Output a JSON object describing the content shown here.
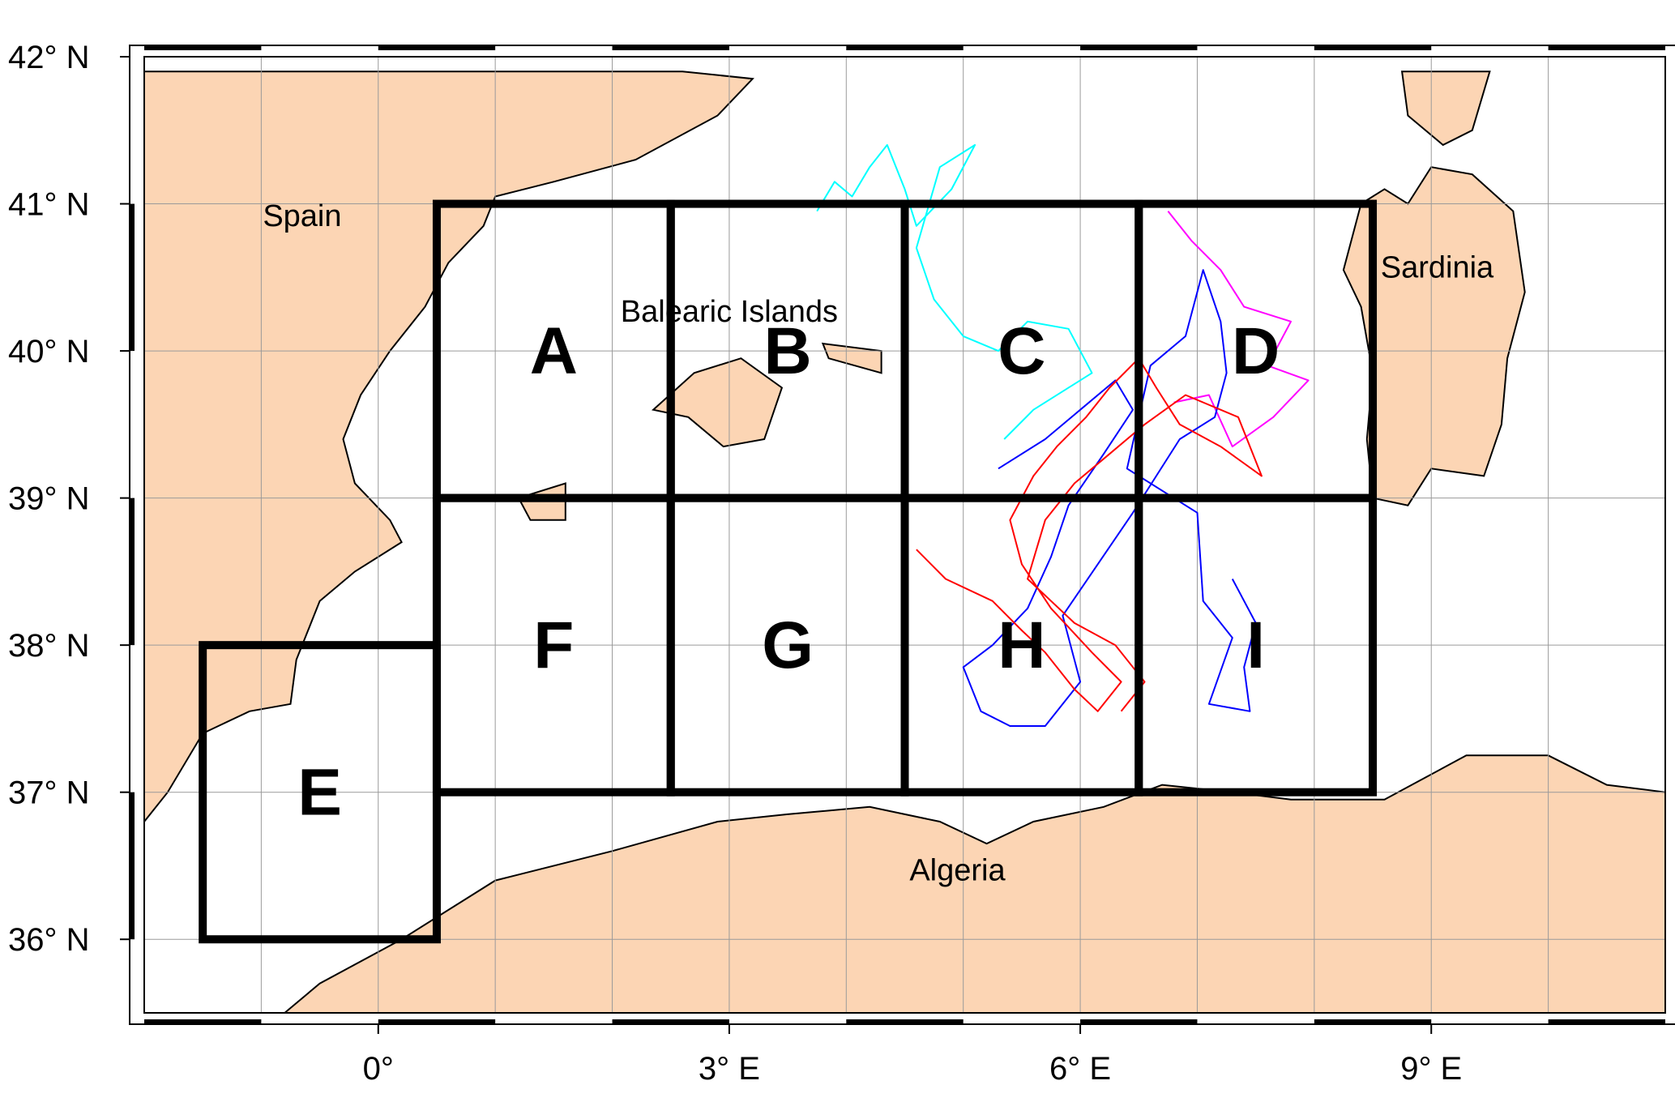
{
  "map": {
    "lat_ticks": [
      {
        "lat": 36,
        "label": "36°  N"
      },
      {
        "lat": 37,
        "label": "37°  N"
      },
      {
        "lat": 38,
        "label": "38°  N"
      },
      {
        "lat": 39,
        "label": "39°  N"
      },
      {
        "lat": 40,
        "label": "40°  N"
      },
      {
        "lat": 41,
        "label": "41°  N"
      },
      {
        "lat": 42,
        "label": "42°  N"
      }
    ],
    "lon_ticks": [
      {
        "lon": 0,
        "label": "0°"
      },
      {
        "lon": 3,
        "label": "3°  E"
      },
      {
        "lon": 6,
        "label": "6°  E"
      },
      {
        "lon": 9,
        "label": "9°  E"
      }
    ],
    "extent": {
      "lon_min": -2.0,
      "lon_max": 11.0,
      "lat_min": 35.5,
      "lat_max": 42.0
    },
    "colors": {
      "land": "#fcd5b4",
      "frame": "#000000",
      "grid": "#9a9a9a"
    },
    "places": [
      {
        "name": "Spain",
        "lon": -0.65,
        "lat": 40.85
      },
      {
        "name": "Balearic Islands",
        "lon": 3.0,
        "lat": 40.2
      },
      {
        "name": "Sardinia",
        "lon": 9.05,
        "lat": 40.5
      },
      {
        "name": "Algeria",
        "lon": 4.95,
        "lat": 36.4
      }
    ],
    "boxes": [
      {
        "label": "A",
        "lon_min": 0.5,
        "lon_max": 2.5,
        "lat_min": 39.0,
        "lat_max": 41.0
      },
      {
        "label": "B",
        "lon_min": 2.5,
        "lon_max": 4.5,
        "lat_min": 39.0,
        "lat_max": 41.0
      },
      {
        "label": "C",
        "lon_min": 4.5,
        "lon_max": 6.5,
        "lat_min": 39.0,
        "lat_max": 41.0
      },
      {
        "label": "D",
        "lon_min": 6.5,
        "lon_max": 8.5,
        "lat_min": 39.0,
        "lat_max": 41.0
      },
      {
        "label": "E",
        "lon_min": -1.5,
        "lon_max": 0.5,
        "lat_min": 36.0,
        "lat_max": 38.0
      },
      {
        "label": "F",
        "lon_min": 0.5,
        "lon_max": 2.5,
        "lat_min": 37.0,
        "lat_max": 39.0
      },
      {
        "label": "G",
        "lon_min": 2.5,
        "lon_max": 4.5,
        "lat_min": 37.0,
        "lat_max": 39.0
      },
      {
        "label": "H",
        "lon_min": 4.5,
        "lon_max": 6.5,
        "lat_min": 37.0,
        "lat_max": 39.0
      },
      {
        "label": "I",
        "lon_min": 6.5,
        "lon_max": 8.5,
        "lat_min": 37.0,
        "lat_max": 39.0
      }
    ],
    "land_polygons": [
      {
        "name": "spain-coast",
        "coords": [
          [
            -2.0,
            41.9
          ],
          [
            0.5,
            41.9
          ],
          [
            2.6,
            41.9
          ],
          [
            3.2,
            41.85
          ],
          [
            2.9,
            41.6
          ],
          [
            2.2,
            41.3
          ],
          [
            1.5,
            41.15
          ],
          [
            1.0,
            41.05
          ],
          [
            0.9,
            40.85
          ],
          [
            0.6,
            40.6
          ],
          [
            0.4,
            40.3
          ],
          [
            0.1,
            40.0
          ],
          [
            -0.15,
            39.7
          ],
          [
            -0.3,
            39.4
          ],
          [
            -0.2,
            39.1
          ],
          [
            0.1,
            38.85
          ],
          [
            0.2,
            38.7
          ],
          [
            -0.2,
            38.5
          ],
          [
            -0.5,
            38.3
          ],
          [
            -0.7,
            37.9
          ],
          [
            -0.75,
            37.6
          ],
          [
            -1.1,
            37.55
          ],
          [
            -1.5,
            37.4
          ],
          [
            -1.8,
            37.0
          ],
          [
            -2.0,
            36.8
          ]
        ]
      },
      {
        "name": "mallorca",
        "coords": [
          [
            2.35,
            39.6
          ],
          [
            2.7,
            39.85
          ],
          [
            3.1,
            39.95
          ],
          [
            3.45,
            39.75
          ],
          [
            3.3,
            39.4
          ],
          [
            2.95,
            39.35
          ],
          [
            2.65,
            39.55
          ],
          [
            2.35,
            39.6
          ]
        ]
      },
      {
        "name": "menorca",
        "coords": [
          [
            3.8,
            40.05
          ],
          [
            4.3,
            40.0
          ],
          [
            4.3,
            39.85
          ],
          [
            3.85,
            39.95
          ],
          [
            3.8,
            40.05
          ]
        ]
      },
      {
        "name": "ibiza",
        "coords": [
          [
            1.2,
            39.0
          ],
          [
            1.6,
            39.1
          ],
          [
            1.6,
            38.85
          ],
          [
            1.3,
            38.85
          ],
          [
            1.2,
            39.0
          ]
        ]
      },
      {
        "name": "sardinia",
        "coords": [
          [
            8.4,
            41.0
          ],
          [
            8.6,
            41.1
          ],
          [
            8.8,
            41.0
          ],
          [
            9.0,
            41.25
          ],
          [
            9.35,
            41.2
          ],
          [
            9.7,
            40.95
          ],
          [
            9.8,
            40.4
          ],
          [
            9.65,
            39.95
          ],
          [
            9.6,
            39.5
          ],
          [
            9.45,
            39.15
          ],
          [
            9.0,
            39.2
          ],
          [
            8.8,
            38.95
          ],
          [
            8.5,
            39.0
          ],
          [
            8.45,
            39.4
          ],
          [
            8.5,
            39.85
          ],
          [
            8.4,
            40.3
          ],
          [
            8.25,
            40.55
          ],
          [
            8.4,
            41.0
          ]
        ]
      },
      {
        "name": "corsica-tip",
        "coords": [
          [
            8.75,
            41.9
          ],
          [
            9.5,
            41.9
          ],
          [
            9.35,
            41.5
          ],
          [
            9.1,
            41.4
          ],
          [
            8.8,
            41.6
          ],
          [
            8.75,
            41.9
          ]
        ]
      },
      {
        "name": "africa-coast",
        "coords": [
          [
            -0.8,
            35.5
          ],
          [
            -0.5,
            35.7
          ],
          [
            0.2,
            36.0
          ],
          [
            1.0,
            36.4
          ],
          [
            2.0,
            36.6
          ],
          [
            2.9,
            36.8
          ],
          [
            3.5,
            36.85
          ],
          [
            4.2,
            36.9
          ],
          [
            4.8,
            36.8
          ],
          [
            5.2,
            36.65
          ],
          [
            5.6,
            36.8
          ],
          [
            6.2,
            36.9
          ],
          [
            6.7,
            37.05
          ],
          [
            7.3,
            37.0
          ],
          [
            7.8,
            36.95
          ],
          [
            8.6,
            36.95
          ],
          [
            9.3,
            37.25
          ],
          [
            10.0,
            37.25
          ],
          [
            10.5,
            37.05
          ],
          [
            11.0,
            37.0
          ],
          [
            11.0,
            35.5
          ],
          [
            -0.8,
            35.5
          ]
        ]
      }
    ],
    "tracks": [
      {
        "color": "#00ffff",
        "coords": [
          [
            3.75,
            40.95
          ],
          [
            3.9,
            41.15
          ],
          [
            4.05,
            41.05
          ],
          [
            4.2,
            41.25
          ],
          [
            4.35,
            41.4
          ],
          [
            4.5,
            41.1
          ],
          [
            4.6,
            40.85
          ],
          [
            4.9,
            41.1
          ],
          [
            5.1,
            41.4
          ],
          [
            4.8,
            41.25
          ],
          [
            4.6,
            40.7
          ],
          [
            4.75,
            40.35
          ],
          [
            5.0,
            40.1
          ],
          [
            5.3,
            40.0
          ],
          [
            5.55,
            40.2
          ],
          [
            5.9,
            40.15
          ],
          [
            6.1,
            39.85
          ],
          [
            5.6,
            39.6
          ],
          [
            5.35,
            39.4
          ]
        ]
      },
      {
        "color": "#ff00ff",
        "coords": [
          [
            6.75,
            40.95
          ],
          [
            6.95,
            40.75
          ],
          [
            7.2,
            40.55
          ],
          [
            7.4,
            40.3
          ],
          [
            7.8,
            40.2
          ],
          [
            7.6,
            39.9
          ],
          [
            7.95,
            39.8
          ],
          [
            7.65,
            39.55
          ],
          [
            7.3,
            39.35
          ],
          [
            7.1,
            39.7
          ],
          [
            6.8,
            39.65
          ]
        ]
      },
      {
        "color": "#0000ff",
        "coords": [
          [
            5.3,
            39.2
          ],
          [
            5.7,
            39.4
          ],
          [
            6.0,
            39.6
          ],
          [
            6.3,
            39.8
          ],
          [
            6.45,
            39.6
          ],
          [
            6.2,
            39.3
          ],
          [
            5.9,
            38.95
          ],
          [
            5.75,
            38.6
          ],
          [
            5.55,
            38.25
          ],
          [
            5.25,
            38.0
          ],
          [
            5.0,
            37.85
          ],
          [
            5.15,
            37.55
          ],
          [
            5.4,
            37.45
          ],
          [
            5.7,
            37.45
          ],
          [
            6.0,
            37.75
          ],
          [
            5.85,
            38.2
          ],
          [
            6.15,
            38.55
          ],
          [
            6.45,
            38.9
          ],
          [
            6.65,
            39.15
          ],
          [
            6.85,
            39.4
          ],
          [
            7.15,
            39.55
          ],
          [
            7.25,
            39.85
          ],
          [
            7.2,
            40.2
          ],
          [
            7.05,
            40.55
          ],
          [
            6.9,
            40.1
          ],
          [
            6.6,
            39.9
          ],
          [
            6.4,
            39.2
          ],
          [
            7.0,
            38.9
          ],
          [
            7.05,
            38.3
          ],
          [
            7.3,
            38.05
          ],
          [
            7.1,
            37.6
          ],
          [
            7.45,
            37.55
          ],
          [
            7.4,
            37.85
          ],
          [
            7.5,
            38.15
          ],
          [
            7.3,
            38.45
          ]
        ]
      },
      {
        "color": "#ff0000",
        "coords": [
          [
            4.6,
            38.65
          ],
          [
            4.85,
            38.45
          ],
          [
            5.25,
            38.3
          ],
          [
            5.5,
            38.1
          ],
          [
            5.7,
            37.95
          ],
          [
            5.95,
            37.7
          ],
          [
            6.15,
            37.55
          ],
          [
            6.35,
            37.75
          ],
          [
            6.1,
            37.95
          ],
          [
            5.75,
            38.25
          ],
          [
            5.5,
            38.55
          ],
          [
            5.4,
            38.85
          ],
          [
            5.6,
            39.15
          ],
          [
            5.8,
            39.35
          ],
          [
            6.05,
            39.55
          ],
          [
            6.25,
            39.75
          ],
          [
            6.5,
            39.95
          ],
          [
            6.65,
            39.75
          ],
          [
            6.85,
            39.5
          ],
          [
            7.2,
            39.35
          ],
          [
            7.55,
            39.15
          ],
          [
            7.35,
            39.55
          ],
          [
            6.9,
            39.7
          ],
          [
            6.55,
            39.5
          ],
          [
            6.25,
            39.3
          ],
          [
            5.95,
            39.1
          ],
          [
            5.7,
            38.85
          ],
          [
            5.55,
            38.45
          ],
          [
            5.95,
            38.15
          ],
          [
            6.3,
            38.0
          ],
          [
            6.55,
            37.75
          ],
          [
            6.35,
            37.55
          ]
        ]
      }
    ]
  }
}
